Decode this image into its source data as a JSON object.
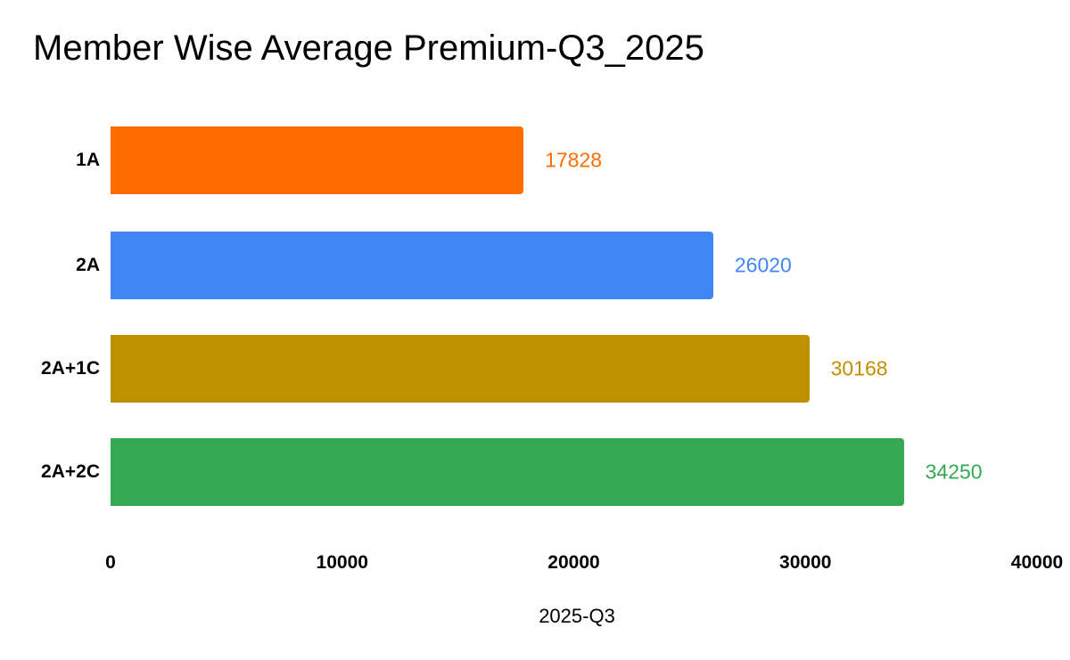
{
  "chart_data": {
    "type": "bar",
    "orientation": "horizontal",
    "title": "Member Wise Average Premium-Q3_2025",
    "xlabel": "2025-Q3",
    "ylabel": "",
    "categories": [
      "1A",
      "2A",
      "2A+1C",
      "2A+2C"
    ],
    "values": [
      17828,
      26020,
      30168,
      34250
    ],
    "colors": [
      "#ff6d00",
      "#4285f4",
      "#bf9000",
      "#34a853"
    ],
    "xlim": [
      0,
      40000
    ],
    "x_ticks": [
      "0",
      "10000",
      "20000",
      "30000",
      "40000"
    ],
    "data_labels": [
      "17828",
      "26020",
      "30168",
      "34250"
    ],
    "grid": false,
    "legend": "none"
  }
}
